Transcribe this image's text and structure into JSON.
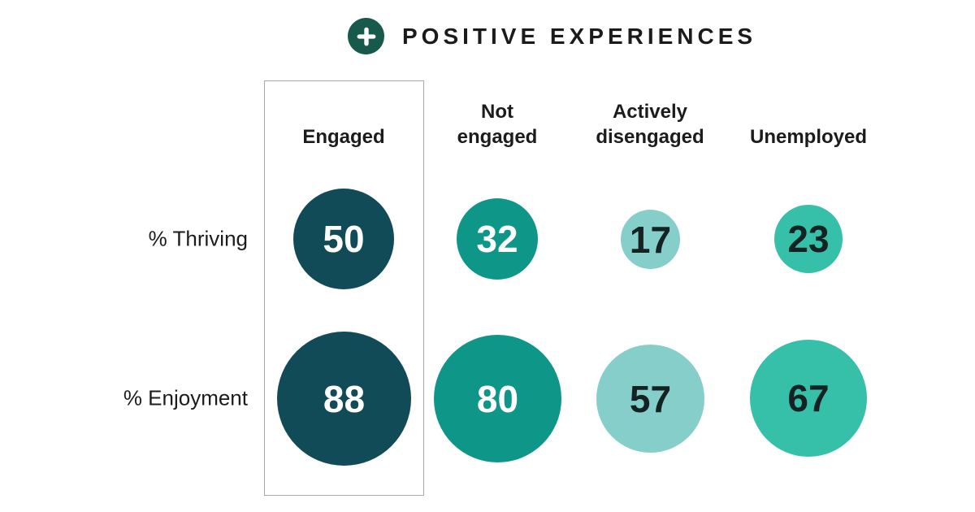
{
  "header": {
    "icon": "plus",
    "title": "POSITIVE EXPERIENCES"
  },
  "chart_data": {
    "type": "table",
    "representation": "bubble matrix, bubble diameter proportional to sqrt(value)",
    "title": "POSITIVE EXPERIENCES",
    "categories": [
      "Engaged",
      "Not engaged",
      "Actively disengaged",
      "Unemployed"
    ],
    "category_labels_display": [
      "Engaged",
      "Not\nengaged",
      "Actively\ndisengaged",
      "Unemployed"
    ],
    "series": [
      {
        "name": "% Thriving",
        "values": [
          50,
          32,
          17,
          23
        ]
      },
      {
        "name": "% Enjoyment",
        "values": [
          88,
          80,
          57,
          67
        ]
      }
    ],
    "highlighted_category": "Engaged",
    "bubble_colors": [
      "#114B57",
      "#0E9688",
      "#85CEC9",
      "#36BFA9"
    ],
    "bubble_text_colors": [
      "#FFFFFF",
      "#FFFFFF",
      "#142222",
      "#142222"
    ],
    "badge_color": "#17594B",
    "legend_position": "none",
    "grid": false
  }
}
